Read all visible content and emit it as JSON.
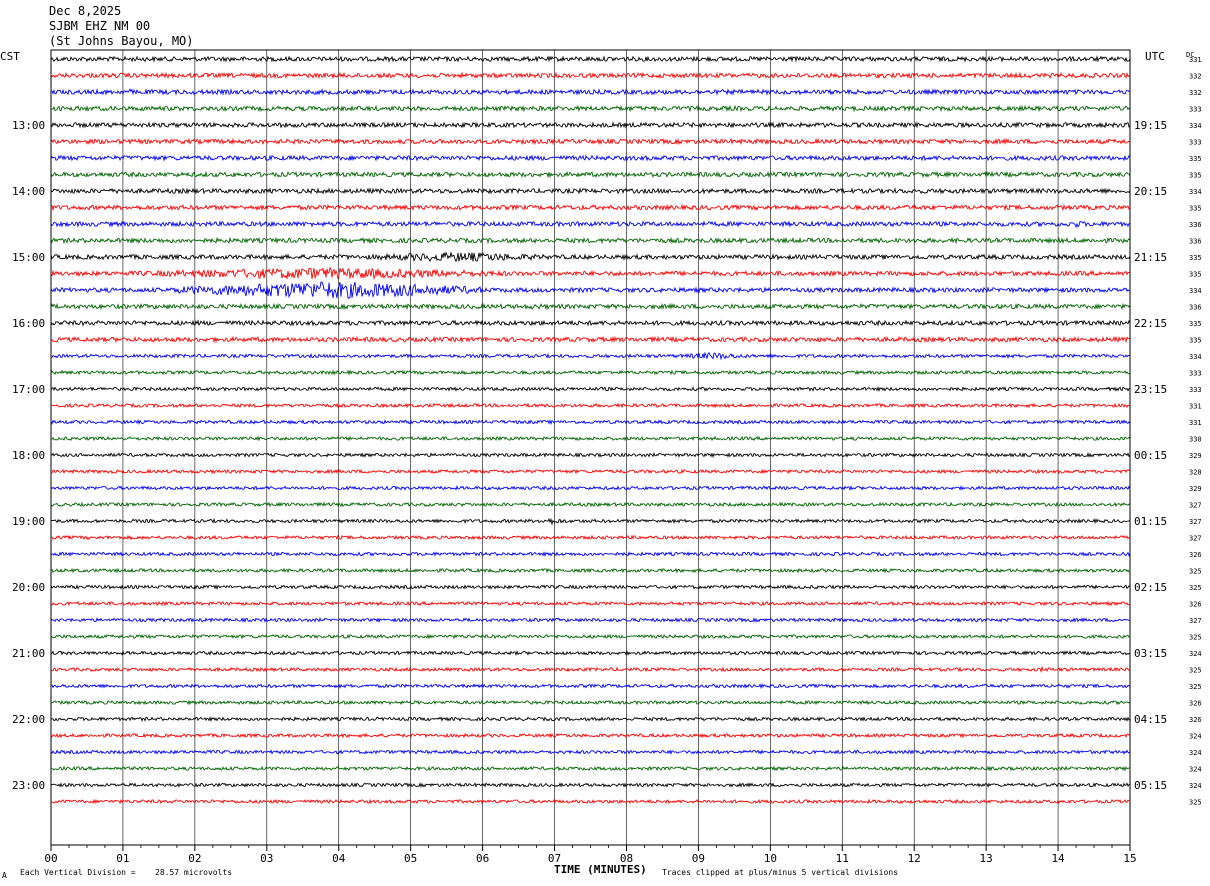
{
  "header": {
    "date": "Dec 8,2025",
    "station": "SJBM EHZ NM 00",
    "location": "(St Johns Bayou, MO)"
  },
  "left_zone": "CST",
  "right_zone": "UTC",
  "dc_label": "DC",
  "footer": {
    "division_text": "Each Vertical Division =",
    "division_value": "28.57 microvolts",
    "clip_note": "Traces clipped at plus/minus 5 vertical divisions",
    "corner_mark": "A"
  },
  "colors": {
    "trace_cycle": [
      "#000000",
      "#ff0000",
      "#0000ff",
      "#006400"
    ],
    "grid": "#000000",
    "background": "#ffffff"
  },
  "chart_data": {
    "type": "line",
    "title": "SJBM EHZ NM 00",
    "xlabel": "TIME (MINUTES)",
    "ylabel": "",
    "x_ticks": [
      "00",
      "01",
      "02",
      "03",
      "04",
      "05",
      "06",
      "07",
      "08",
      "09",
      "10",
      "11",
      "12",
      "13",
      "14",
      "15"
    ],
    "xlim": [
      0,
      15
    ],
    "grid": true,
    "rows_per_hour": 4,
    "left_hour_labels": [
      "13:00",
      "14:00",
      "15:00",
      "16:00",
      "17:00",
      "18:00",
      "19:00",
      "20:00",
      "21:00",
      "22:00",
      "23:00"
    ],
    "right_hour_labels": [
      "19:15",
      "20:15",
      "21:15",
      "22:15",
      "23:15",
      "00:15",
      "01:15",
      "02:15",
      "03:15",
      "04:15",
      "05:15"
    ],
    "hour_label_first_row": 4,
    "dc_offsets": [
      331,
      332,
      332,
      333,
      334,
      333,
      335,
      335,
      334,
      335,
      336,
      336,
      335,
      335,
      334,
      336,
      335,
      335,
      334,
      333,
      333,
      331,
      331,
      330,
      329,
      328,
      329,
      327,
      327,
      327,
      326,
      325,
      325,
      326,
      327,
      325,
      324,
      325,
      325,
      326,
      326,
      324,
      324,
      324,
      324,
      325
    ],
    "events": [
      {
        "row": 0,
        "start_min": 3.3,
        "end_min": 3.8,
        "amp": 2.0
      },
      {
        "row": 0,
        "start_min": 13.5,
        "end_min": 14.2,
        "amp": 1.8
      },
      {
        "row": 2,
        "start_min": 1.0,
        "end_min": 1.2,
        "amp": 3.0
      },
      {
        "row": 4,
        "start_min": 3.9,
        "end_min": 4.2,
        "amp": 2.5
      },
      {
        "row": 6,
        "start_min": 0.1,
        "end_min": 0.5,
        "amp": 2.0
      },
      {
        "row": 7,
        "start_min": 1.5,
        "end_min": 2.0,
        "amp": 2.0
      },
      {
        "row": 10,
        "start_min": 14.0,
        "end_min": 14.5,
        "amp": 3.5
      },
      {
        "row": 11,
        "start_min": 13.4,
        "end_min": 13.7,
        "amp": 2.5
      },
      {
        "row": 12,
        "start_min": 4.2,
        "end_min": 7.1,
        "amp": 5.0
      },
      {
        "row": 13,
        "start_min": 1.0,
        "end_min": 6.5,
        "amp": 6.0
      },
      {
        "row": 14,
        "start_min": 1.7,
        "end_min": 6.0,
        "amp": 9.0
      },
      {
        "row": 15,
        "start_min": 6.5,
        "end_min": 7.0,
        "amp": 3.0
      },
      {
        "row": 18,
        "start_min": 8.6,
        "end_min": 9.8,
        "amp": 3.5
      },
      {
        "row": 20,
        "start_min": 7.3,
        "end_min": 8.0,
        "amp": 2.0
      },
      {
        "row": 21,
        "start_min": 5.2,
        "end_min": 5.4,
        "amp": 2.5
      },
      {
        "row": 28,
        "start_min": 6.6,
        "end_min": 7.3,
        "amp": 3.0
      },
      {
        "row": 37,
        "start_min": 13.6,
        "end_min": 14.0,
        "amp": 2.5
      },
      {
        "row": 38,
        "start_min": 12.0,
        "end_min": 13.4,
        "amp": 1.8
      }
    ]
  }
}
